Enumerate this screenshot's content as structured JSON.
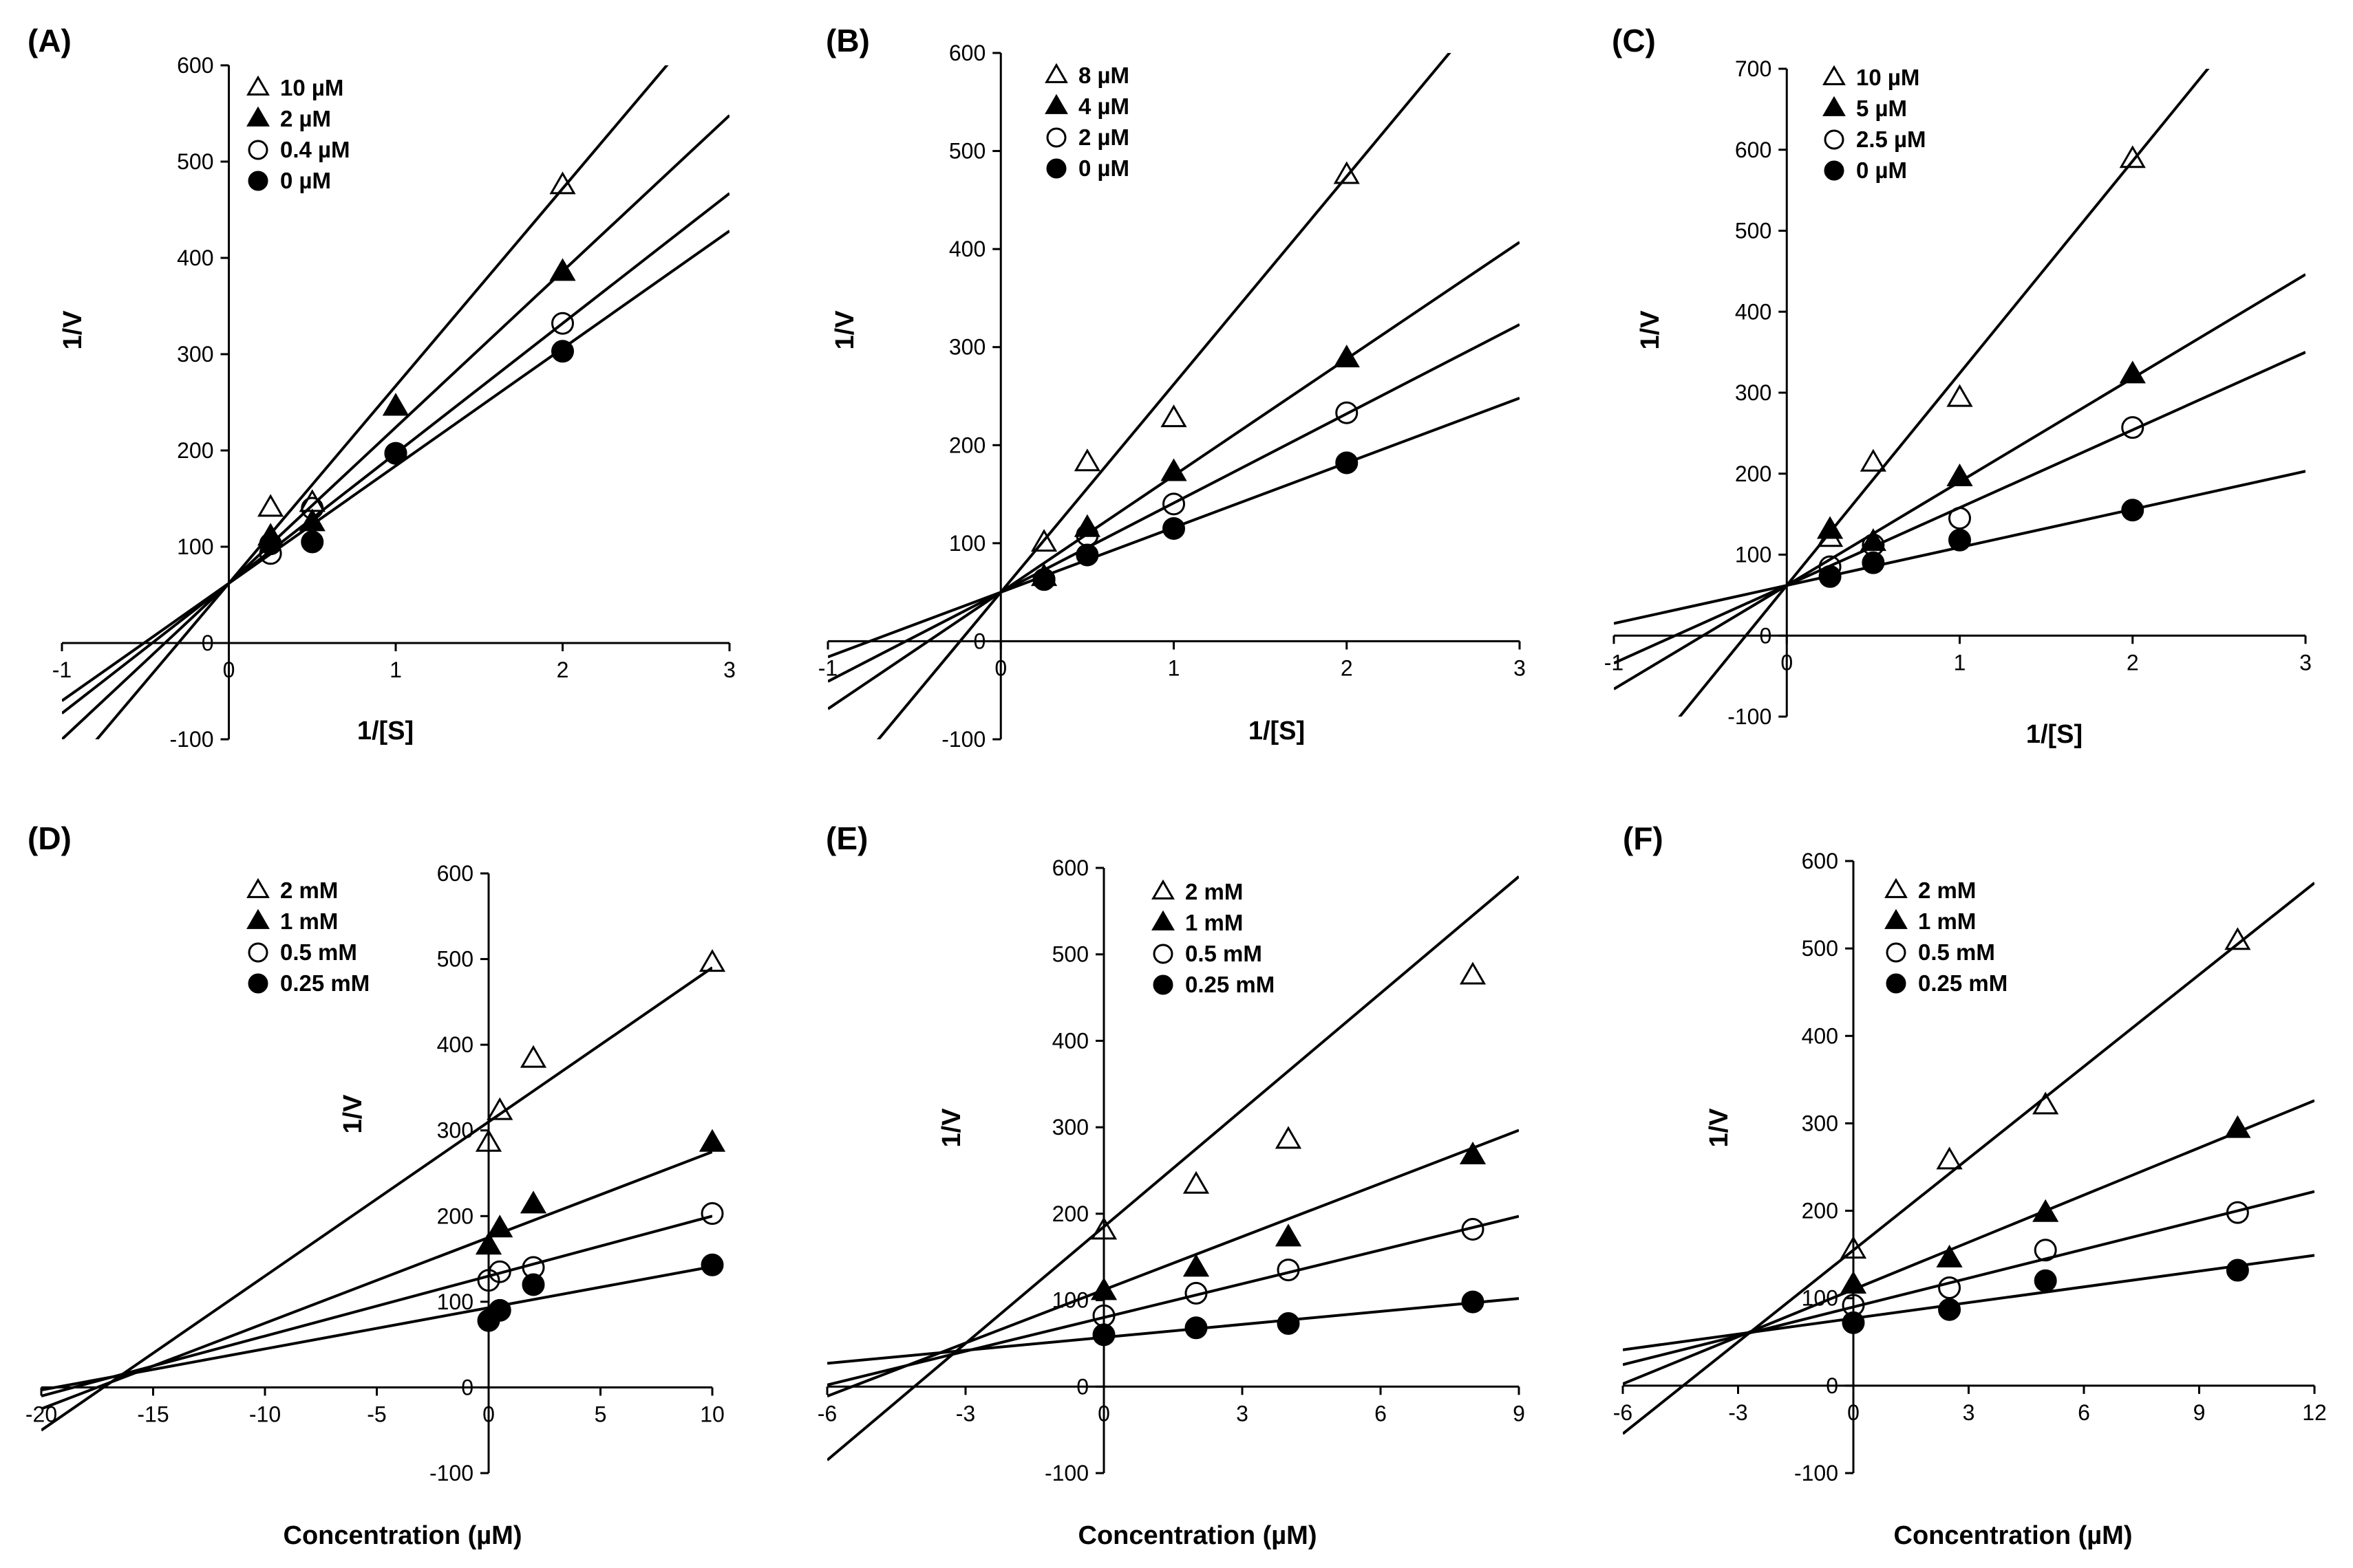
{
  "chart_data": [
    {
      "type": "scatter",
      "panel_label": "(A)",
      "xlabel": "1/[S]",
      "ylabel": "1/V",
      "xlim": [
        -1,
        3
      ],
      "ylim": [
        -100,
        600
      ],
      "xticks": [
        "-1",
        "0",
        "1",
        "2",
        "3"
      ],
      "yticks": [
        "-100",
        "0",
        "100",
        "200",
        "300",
        "400",
        "500",
        "600"
      ],
      "fit_lines": true,
      "series": [
        {
          "name": "10 µM",
          "marker": "triangle-open",
          "x": [
            0.25,
            0.5,
            1,
            2
          ],
          "y": [
            140,
            145,
            245,
            475
          ],
          "fit": {
            "slope": 205,
            "intercept": 62
          }
        },
        {
          "name": "2 µM",
          "marker": "triangle-filled",
          "x": [
            0.25,
            0.5,
            1,
            2
          ],
          "y": [
            110,
            125,
            245,
            385
          ],
          "fit": {
            "slope": 162,
            "intercept": 62
          }
        },
        {
          "name": "0.4 µM",
          "marker": "circle-open",
          "x": [
            0.25,
            0.5,
            1,
            2
          ],
          "y": [
            93,
            140,
            197,
            332
          ],
          "fit": {
            "slope": 135,
            "intercept": 62
          }
        },
        {
          "name": "0 µM",
          "marker": "circle-filled",
          "x": [
            0.25,
            0.5,
            1,
            2
          ],
          "y": [
            103,
            105,
            197,
            303
          ],
          "fit": {
            "slope": 122,
            "intercept": 62
          }
        }
      ]
    },
    {
      "type": "scatter",
      "panel_label": "(B)",
      "xlabel": "1/[S]",
      "ylabel": "1/V",
      "xlim": [
        -1,
        3
      ],
      "ylim": [
        -100,
        600
      ],
      "xticks": [
        "-1",
        "0",
        "1",
        "2",
        "3"
      ],
      "yticks": [
        "-100",
        "0",
        "100",
        "200",
        "300",
        "400",
        "500",
        "600"
      ],
      "fit_lines": true,
      "series": [
        {
          "name": "8 µM",
          "marker": "triangle-open",
          "x": [
            0.25,
            0.5,
            1,
            2
          ],
          "y": [
            100,
            182,
            227,
            475
          ],
          "fit": {
            "slope": 212,
            "intercept": 50
          }
        },
        {
          "name": "4 µM",
          "marker": "triangle-filled",
          "x": [
            0.25,
            0.5,
            1,
            2
          ],
          "y": [
            65,
            115,
            172,
            288
          ],
          "fit": {
            "slope": 119,
            "intercept": 50
          }
        },
        {
          "name": "2 µM",
          "marker": "circle-open",
          "x": [
            0.25,
            0.5,
            1,
            2
          ],
          "y": [
            63,
            108,
            140,
            233
          ],
          "fit": {
            "slope": 91,
            "intercept": 50
          }
        },
        {
          "name": "0 µM",
          "marker": "circle-filled",
          "x": [
            0.25,
            0.5,
            1,
            2
          ],
          "y": [
            63,
            88,
            115,
            182
          ],
          "fit": {
            "slope": 66,
            "intercept": 50
          }
        }
      ]
    },
    {
      "type": "scatter",
      "panel_label": "(C)",
      "xlabel": "1/[S]",
      "ylabel": "1/V",
      "xlim": [
        -1,
        3
      ],
      "ylim": [
        -100,
        700
      ],
      "xticks": [
        "-1",
        "0",
        "1",
        "2",
        "3"
      ],
      "yticks": [
        "-100",
        "0",
        "100",
        "200",
        "300",
        "400",
        "500",
        "600",
        "700"
      ],
      "fit_lines": true,
      "series": [
        {
          "name": "10 µM",
          "marker": "triangle-open",
          "x": [
            0.25,
            0.5,
            1,
            2
          ],
          "y": [
            120,
            213,
            293,
            588
          ],
          "fit": {
            "slope": 262,
            "intercept": 62
          }
        },
        {
          "name": "5 µM",
          "marker": "triangle-filled",
          "x": [
            0.25,
            0.5,
            1,
            2
          ],
          "y": [
            130,
            115,
            195,
            322
          ],
          "fit": {
            "slope": 128,
            "intercept": 62
          }
        },
        {
          "name": "2.5 µM",
          "marker": "circle-open",
          "x": [
            0.25,
            0.5,
            1,
            2
          ],
          "y": [
            85,
            112,
            145,
            257
          ],
          "fit": {
            "slope": 96,
            "intercept": 62
          }
        },
        {
          "name": "0 µM",
          "marker": "circle-filled",
          "x": [
            0.25,
            0.5,
            1,
            2
          ],
          "y": [
            73,
            90,
            118,
            155
          ],
          "fit": {
            "slope": 47,
            "intercept": 62
          }
        }
      ]
    },
    {
      "type": "scatter",
      "panel_label": "(D)",
      "xlabel": "Concentration (µM)",
      "ylabel": "1/V",
      "xlim": [
        -20,
        10
      ],
      "ylim": [
        -100,
        600
      ],
      "xticks": [
        "-20",
        "-15",
        "-10",
        "-5",
        "0",
        "5",
        "10"
      ],
      "yticks": [
        "-100",
        "0",
        "100",
        "200",
        "300",
        "400",
        "500",
        "600"
      ],
      "fit_lines": true,
      "series": [
        {
          "name": "2 mM",
          "marker": "triangle-open",
          "x": [
            0,
            0.5,
            2,
            10
          ],
          "y": [
            285,
            322,
            383,
            495
          ],
          "fit": {
            "slope": 18.0,
            "intercept": 310
          }
        },
        {
          "name": "1 mM",
          "marker": "triangle-filled",
          "x": [
            0,
            0.5,
            2,
            10
          ],
          "y": [
            165,
            185,
            213,
            285
          ],
          "fit": {
            "slope": 10.0,
            "intercept": 175
          }
        },
        {
          "name": "0.5 mM",
          "marker": "circle-open",
          "x": [
            0,
            0.5,
            2,
            10
          ],
          "y": [
            125,
            135,
            140,
            203
          ],
          "fit": {
            "slope": 7.0,
            "intercept": 130
          }
        },
        {
          "name": "0.25 mM",
          "marker": "circle-filled",
          "x": [
            0,
            0.5,
            2,
            10
          ],
          "y": [
            78,
            90,
            120,
            143
          ],
          "fit": {
            "slope": 4.8,
            "intercept": 93
          }
        }
      ]
    },
    {
      "type": "scatter",
      "panel_label": "(E)",
      "xlabel": "Concentration (µM)",
      "ylabel": "1/V",
      "xlim": [
        -6,
        9
      ],
      "ylim": [
        -100,
        600
      ],
      "xticks": [
        "-6",
        "-3",
        "0",
        "3",
        "6",
        "9"
      ],
      "yticks": [
        "-100",
        "0",
        "100",
        "200",
        "300",
        "400",
        "500",
        "600"
      ],
      "fit_lines": true,
      "series": [
        {
          "name": "2 mM",
          "marker": "triangle-open",
          "x": [
            0,
            2,
            4,
            8
          ],
          "y": [
            180,
            233,
            285,
            475
          ],
          "fit": {
            "slope": 45.0,
            "intercept": 185
          }
        },
        {
          "name": "1 mM",
          "marker": "triangle-filled",
          "x": [
            0,
            2,
            4,
            8
          ],
          "y": [
            110,
            137,
            172,
            267
          ],
          "fit": {
            "slope": 20.5,
            "intercept": 112
          }
        },
        {
          "name": "0.5 mM",
          "marker": "circle-open",
          "x": [
            0,
            2,
            4,
            8
          ],
          "y": [
            82,
            108,
            135,
            182
          ],
          "fit": {
            "slope": 13.0,
            "intercept": 80
          }
        },
        {
          "name": "0.25 mM",
          "marker": "circle-filled",
          "x": [
            0,
            2,
            4,
            8
          ],
          "y": [
            60,
            68,
            73,
            98
          ],
          "fit": {
            "slope": 5.0,
            "intercept": 57
          }
        }
      ]
    },
    {
      "type": "scatter",
      "panel_label": "(F)",
      "xlabel": "Concentration (µM)",
      "ylabel": "1/V",
      "xlim": [
        -6,
        12
      ],
      "ylim": [
        -100,
        600
      ],
      "xticks": [
        "-6",
        "-3",
        "0",
        "3",
        "6",
        "9",
        "12"
      ],
      "yticks": [
        "-100",
        "0",
        "100",
        "200",
        "300",
        "400",
        "500",
        "600"
      ],
      "fit_lines": true,
      "series": [
        {
          "name": "2 mM",
          "marker": "triangle-open",
          "x": [
            0,
            2.5,
            5,
            10
          ],
          "y": [
            155,
            257,
            320,
            508
          ],
          "fit": {
            "slope": 35.0,
            "intercept": 155
          }
        },
        {
          "name": "1 mM",
          "marker": "triangle-filled",
          "x": [
            0,
            2.5,
            5,
            10
          ],
          "y": [
            115,
            145,
            197,
            293
          ],
          "fit": {
            "slope": 18.0,
            "intercept": 110
          }
        },
        {
          "name": "0.5 mM",
          "marker": "circle-open",
          "x": [
            0,
            2.5,
            5,
            10
          ],
          "y": [
            92,
            112,
            155,
            198
          ],
          "fit": {
            "slope": 11.0,
            "intercept": 90
          }
        },
        {
          "name": "0.25 mM",
          "marker": "circle-filled",
          "x": [
            0,
            2.5,
            5,
            10
          ],
          "y": [
            72,
            87,
            120,
            132
          ],
          "fit": {
            "slope": 6.0,
            "intercept": 77
          }
        }
      ]
    }
  ]
}
